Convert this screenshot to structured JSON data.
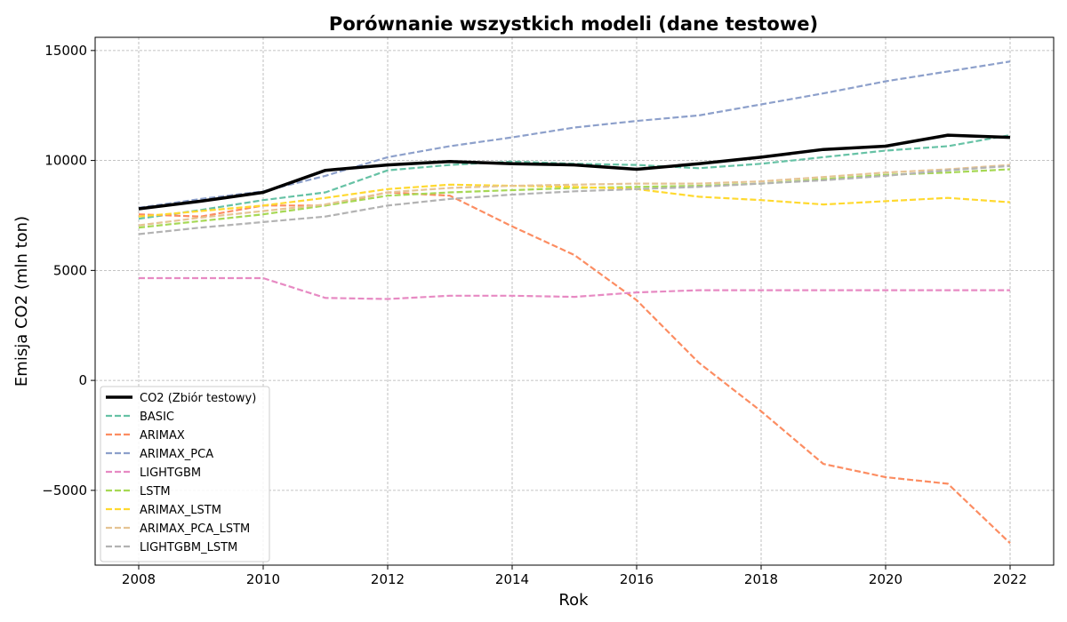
{
  "chart_data": {
    "type": "line",
    "title": "Porównanie wszystkich modeli (dane testowe)",
    "xlabel": "Rok",
    "ylabel": "Emisja CO2 (mln ton)",
    "xlim": [
      2007.3,
      2022.7
    ],
    "ylim": [
      -8400,
      15600
    ],
    "x_ticks": [
      2008,
      2010,
      2012,
      2014,
      2016,
      2018,
      2020,
      2022
    ],
    "y_ticks": [
      -5000,
      0,
      5000,
      10000,
      15000
    ],
    "y_tick_labels": [
      "−5000",
      "0",
      "5000",
      "10000",
      "15000"
    ],
    "grid": true,
    "legend_position": "lower-left",
    "x": [
      2008,
      2009,
      2010,
      2011,
      2012,
      2013,
      2014,
      2015,
      2016,
      2017,
      2018,
      2019,
      2020,
      2021,
      2022
    ],
    "series": [
      {
        "name": "CO2 (Zbiór testowy)",
        "color": "#000000",
        "style": "solid",
        "width": 3.5,
        "values": [
          7800,
          8150,
          8550,
          9550,
          9800,
          9950,
          9850,
          9800,
          9600,
          9850,
          10150,
          10500,
          10650,
          11150,
          11050
        ]
      },
      {
        "name": "BASIC",
        "color": "#66c2a5",
        "style": "dashed",
        "width": 2.2,
        "values": [
          7350,
          7750,
          8200,
          8550,
          9550,
          9800,
          9950,
          9850,
          9800,
          9650,
          9850,
          10150,
          10450,
          10650,
          11150
        ]
      },
      {
        "name": "ARIMAX",
        "color": "#fc8d62",
        "style": "dashed",
        "width": 2.2,
        "values": [
          7550,
          7450,
          7950,
          7950,
          8550,
          8400,
          7000,
          5700,
          3650,
          800,
          -1400,
          -3800,
          -4400,
          -4700,
          -7400
        ]
      },
      {
        "name": "ARIMAX_PCA",
        "color": "#8da0cb",
        "style": "dashed",
        "width": 2.2,
        "values": [
          7850,
          8250,
          8600,
          9300,
          10150,
          10650,
          11050,
          11500,
          11800,
          12050,
          12550,
          13050,
          13600,
          14050,
          14500
        ]
      },
      {
        "name": "LIGHTGBM",
        "color": "#e78ac3",
        "style": "dashed",
        "width": 2.2,
        "values": [
          4650,
          4650,
          4650,
          3750,
          3700,
          3850,
          3850,
          3800,
          4000,
          4100,
          4100,
          4100,
          4100,
          4100,
          4100
        ]
      },
      {
        "name": "LSTM",
        "color": "#a6d854",
        "style": "dashed",
        "width": 2.2,
        "values": [
          6950,
          7250,
          7550,
          7950,
          8400,
          8550,
          8650,
          8750,
          8800,
          8850,
          8950,
          9150,
          9350,
          9450,
          9600
        ]
      },
      {
        "name": "ARIMAX_LSTM",
        "color": "#ffd92f",
        "style": "dashed",
        "width": 2.2,
        "values": [
          7450,
          7700,
          7950,
          8300,
          8700,
          8900,
          8850,
          8800,
          8700,
          8350,
          8200,
          8000,
          8150,
          8300,
          8100
        ]
      },
      {
        "name": "ARIMAX_PCA_LSTM",
        "color": "#e5c494",
        "style": "dashed",
        "width": 2.2,
        "values": [
          7050,
          7400,
          7700,
          8000,
          8550,
          8750,
          8850,
          8900,
          8950,
          8950,
          9050,
          9250,
          9450,
          9600,
          9800
        ]
      },
      {
        "name": "LIGHTGBM_LSTM",
        "color": "#b3b3b3",
        "style": "dashed",
        "width": 2.2,
        "values": [
          6650,
          6950,
          7200,
          7450,
          7950,
          8250,
          8450,
          8600,
          8700,
          8800,
          8950,
          9100,
          9300,
          9550,
          9750
        ]
      }
    ]
  }
}
